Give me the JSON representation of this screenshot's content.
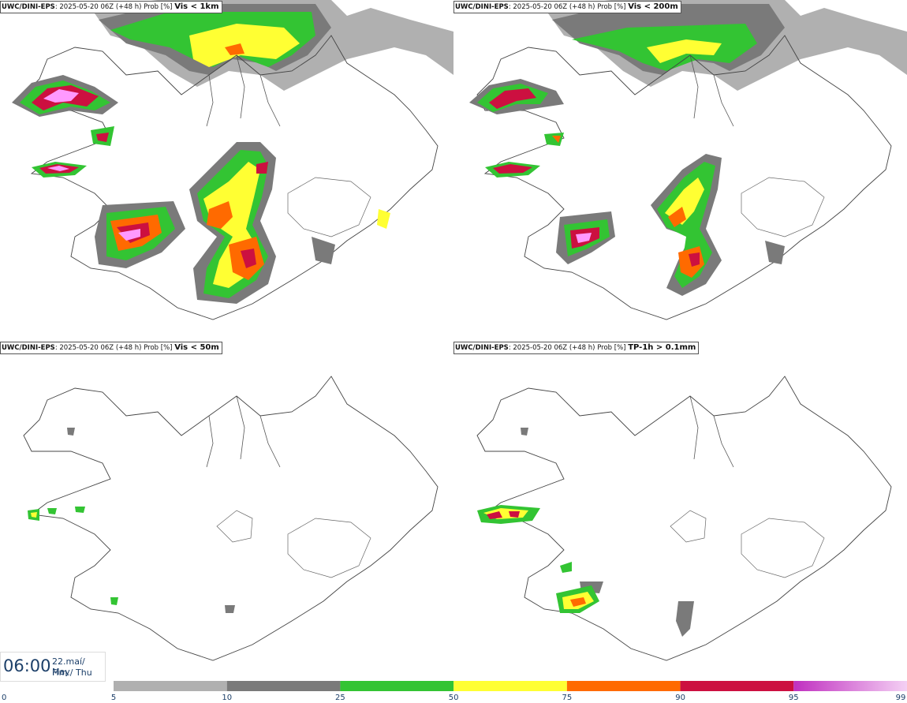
{
  "panels": [
    {
      "source": "UWC/DINI-EPS",
      "run": "2025-05-20 06Z (+48 h) Prob [%]",
      "variable": "Vis < 1km"
    },
    {
      "source": "UWC/DINI-EPS",
      "run": "2025-05-20 06Z (+48 h) Prob [%]",
      "variable": "Vis < 200m"
    },
    {
      "source": "UWC/DINI-EPS",
      "run": "2025-05-20 06Z (+48 h) Prob [%]",
      "variable": "Vis < 50m"
    },
    {
      "source": "UWC/DINI-EPS",
      "run": "2025-05-20 06Z (+48 h) Prob [%]",
      "variable": "TP-1h > 0.1mm"
    }
  ],
  "valid_time": {
    "clock": "06:00",
    "date_line1": "22.maí/ May",
    "date_line2": "Fim./ Thu"
  },
  "legend": {
    "bins": [
      {
        "from": 5,
        "to": 10,
        "color": "#b0b0b0"
      },
      {
        "from": 10,
        "to": 25,
        "color": "#7a7a7a"
      },
      {
        "from": 25,
        "to": 50,
        "color": "#33c433"
      },
      {
        "from": 50,
        "to": 75,
        "color": "#ffff33"
      },
      {
        "from": 75,
        "to": 90,
        "color": "#ff6a00"
      },
      {
        "from": 90,
        "to": 95,
        "color": "#cc1040"
      },
      {
        "from": 95,
        "to": 99,
        "color": "#c030c0"
      }
    ],
    "tick_labels": [
      "0",
      "5",
      "10",
      "25",
      "50",
      "75",
      "90",
      "95",
      "99"
    ],
    "label_color": "#1c3f69"
  }
}
